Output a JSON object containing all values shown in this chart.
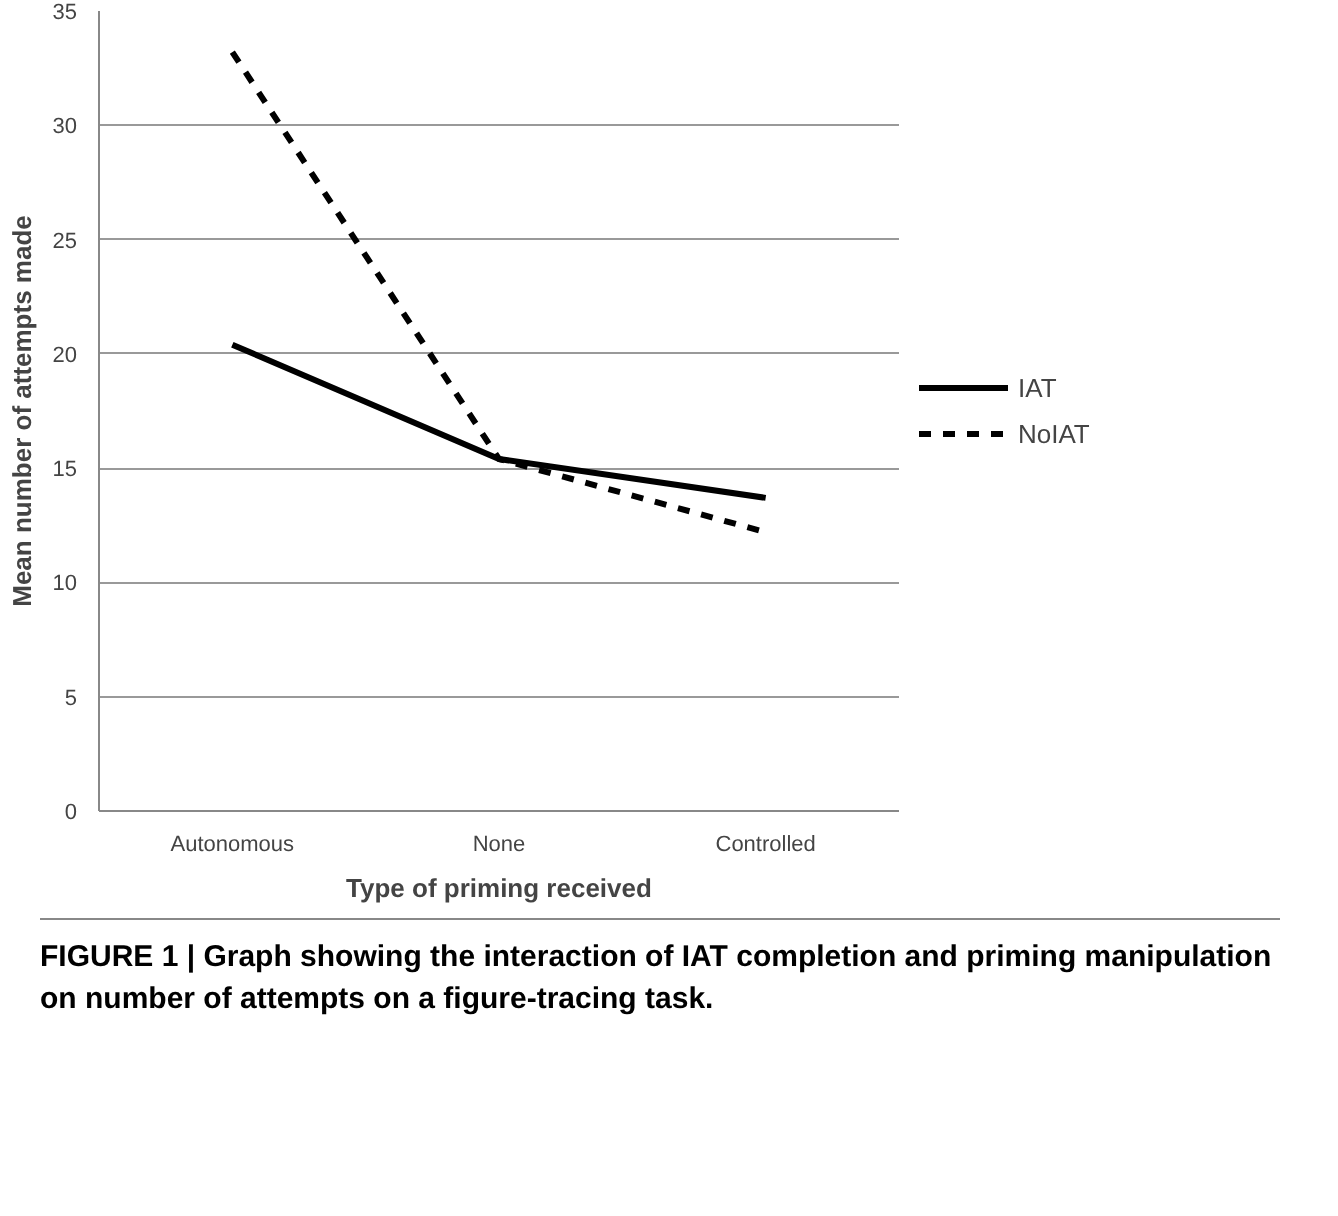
{
  "chart_data": {
    "type": "line",
    "xlabel": "Type of priming received",
    "ylabel": "Mean number of attempts made",
    "categories": [
      "Autonomous",
      "None",
      "Controlled"
    ],
    "series": [
      {
        "name": "IAT",
        "color": "#000000",
        "values": [
          20.4,
          15.4,
          13.7
        ],
        "line_style": "solid"
      },
      {
        "name": "NoIAT",
        "color": "#000000",
        "values": [
          33.2,
          15.4,
          12.2
        ],
        "line_style": "dashed"
      }
    ],
    "ylim": [
      0,
      35
    ],
    "yticks": [
      0,
      5,
      10,
      15,
      20,
      25,
      30,
      35
    ],
    "grid": "y",
    "legend": "right",
    "marker": "none",
    "annotations": [
      "FIGURE 1 | Graph showing the interaction of IAT completion and priming manipulation on number of attempts on a figure-tracing task."
    ]
  }
}
